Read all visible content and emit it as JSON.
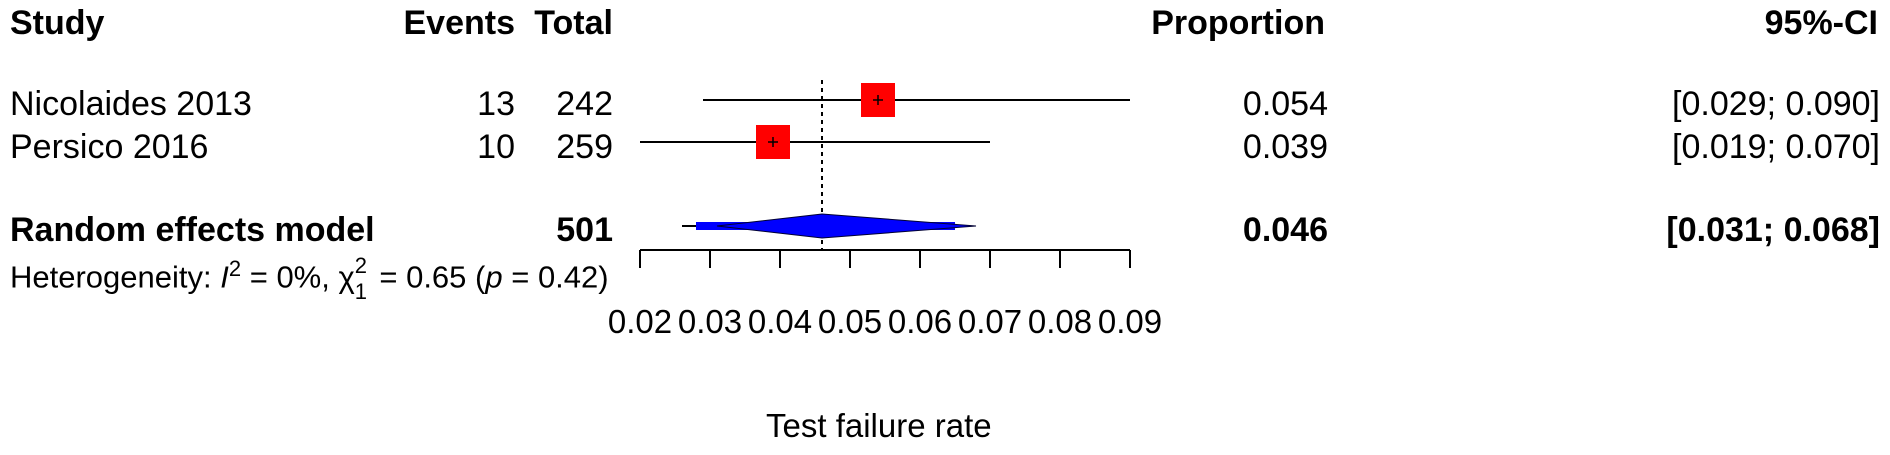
{
  "headers": {
    "study": "Study",
    "events": "Events",
    "total": "Total",
    "proportion": "Proportion",
    "ci": "95%-CI"
  },
  "studies": [
    {
      "name": "Nicolaides 2013",
      "events": "13",
      "total": "242",
      "proportion": "0.054",
      "ci": "[0.029; 0.090]"
    },
    {
      "name": "Persico 2016",
      "events": "10",
      "total": "259",
      "proportion": "0.039",
      "ci": "[0.019; 0.070]"
    }
  ],
  "pooled": {
    "name": "Random effects model",
    "total": "501",
    "proportion": "0.046",
    "ci": "[0.031; 0.068]"
  },
  "heterogeneity": {
    "prefix": "Heterogeneity: ",
    "i2_symbol": "I",
    "i2_sup": "2",
    "i2_value": " = 0%, ",
    "chi_symbol": "χ",
    "chi_sup": "2",
    "chi_sub": "1",
    "chi_value": " = 0.65 (",
    "p_symbol": "p",
    "p_value": " = 0.42)"
  },
  "axis": {
    "label": "Test failure rate",
    "ticks": [
      "0.02",
      "0.03",
      "0.04",
      "0.05",
      "0.06",
      "0.07",
      "0.08",
      "0.09"
    ]
  },
  "colors": {
    "study_box": "#ff0000",
    "pooled_diamond": "#0000ff",
    "line": "#000000"
  },
  "chart_data": {
    "type": "forest",
    "xlabel": "Test failure rate",
    "xlim": [
      0.02,
      0.09
    ],
    "reference_line": 0.046,
    "studies": [
      {
        "name": "Nicolaides 2013",
        "estimate": 0.054,
        "lower": 0.029,
        "upper": 0.09,
        "events": 13,
        "total": 242
      },
      {
        "name": "Persico 2016",
        "estimate": 0.039,
        "lower": 0.019,
        "upper": 0.07,
        "events": 10,
        "total": 259
      }
    ],
    "pooled": {
      "name": "Random effects model",
      "estimate": 0.046,
      "lower": 0.031,
      "upper": 0.068,
      "total": 501
    }
  }
}
